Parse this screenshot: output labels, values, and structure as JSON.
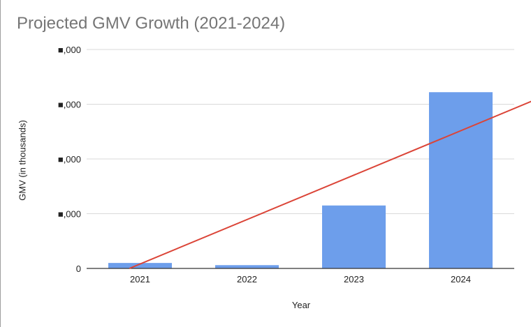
{
  "chart_data": {
    "type": "bar",
    "title": "Projected GMV Growth (2021-2024)",
    "xlabel": "Year",
    "ylabel": "GMV (in thousands)",
    "categories": [
      "2021",
      "2022",
      "2023",
      "2024"
    ],
    "values": [
      0.1,
      0.06,
      1.15,
      3.22
    ],
    "ylim": [
      0,
      4
    ],
    "y_ticks": [
      0,
      1,
      2,
      3,
      4
    ],
    "y_tick_labels": [
      "0",
      "■,000",
      "■,000",
      "■,000",
      "■,000"
    ],
    "trendline": {
      "start": [
        0.4,
        0
      ],
      "end": [
        4.65,
        3.45
      ]
    },
    "grid": true,
    "legend": "none",
    "colors": {
      "bar": "#6d9eeb",
      "trendline": "#db4437",
      "grid": "#d9d9d9",
      "axis": "#333333"
    }
  }
}
